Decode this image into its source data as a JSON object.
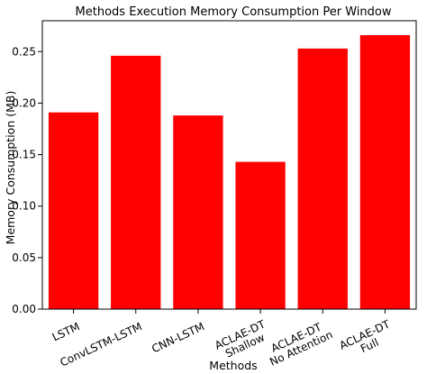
{
  "chart_data": {
    "type": "bar",
    "title": "Methods Execution Memory Consumption Per Window",
    "xlabel": "Methods",
    "ylabel": "Memory Consumption (MB)",
    "categories": [
      [
        "LSTM"
      ],
      [
        "ConvLSTM-LSTM"
      ],
      [
        "CNN-LSTM"
      ],
      [
        "ACLAE-DT",
        "Shallow"
      ],
      [
        "ACLAE-DT",
        "No Attention"
      ],
      [
        "ACLAE-DT",
        "Full"
      ]
    ],
    "values": [
      0.191,
      0.246,
      0.188,
      0.143,
      0.253,
      0.266
    ],
    "ylim": [
      0,
      0.28
    ],
    "yticks": [
      "0.00",
      "0.05",
      "0.10",
      "0.15",
      "0.20",
      "0.25"
    ],
    "bar_color": "#ff0000",
    "grid": false,
    "legend": "none"
  }
}
